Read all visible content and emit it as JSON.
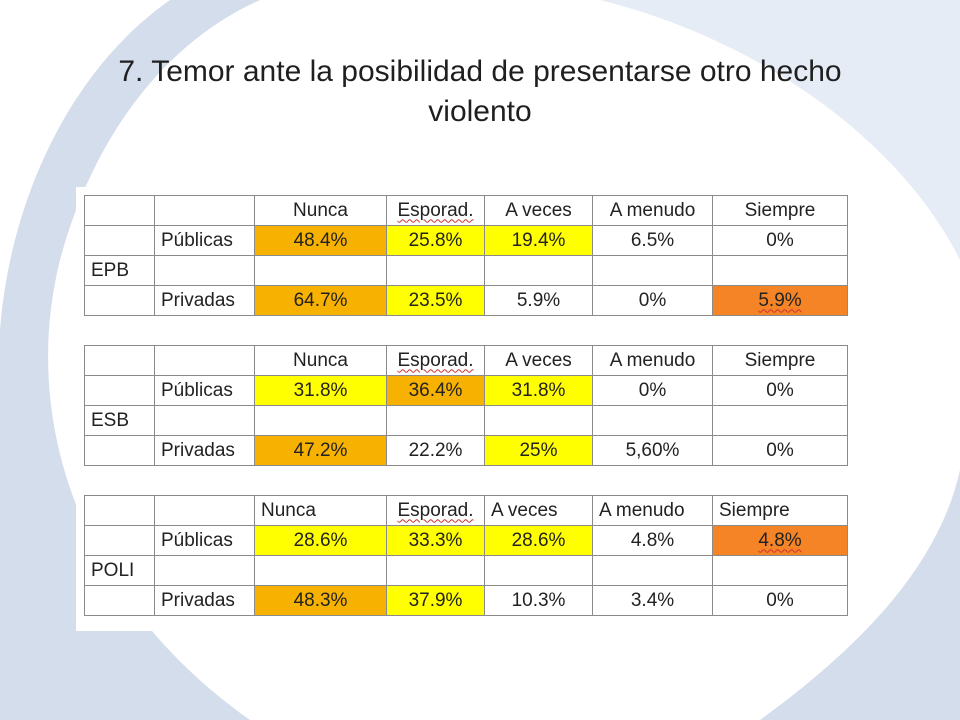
{
  "slide": {
    "title_line1": "7. Temor ante la posibilidad de presentarse otro hecho",
    "title_line2": "violento"
  },
  "colors": {
    "orange": "#f7b100",
    "yellow": "#ffff00",
    "red_orange": "#f58426",
    "background_swoosh": "#d3ddec"
  },
  "tables": [
    {
      "group": "EPB",
      "headers": [
        "Nunca",
        "Esporad.",
        "A veces",
        "A menudo",
        "Siempre"
      ],
      "row1": {
        "label": "Públicas",
        "values": [
          "48.4%",
          "25.8%",
          "19.4%",
          "6.5%",
          "0%"
        ]
      },
      "row2": {
        "label": "Privadas",
        "values": [
          "64.7%",
          "23.5%",
          "5.9%",
          "0%",
          "5.9%"
        ]
      }
    },
    {
      "group": "ESB",
      "headers": [
        "Nunca",
        "Esporad.",
        "A veces",
        "A menudo",
        "Siempre"
      ],
      "row1": {
        "label": "Públicas",
        "values": [
          "31.8%",
          "36.4%",
          "31.8%",
          "0%",
          "0%"
        ]
      },
      "row2": {
        "label": "Privadas",
        "values": [
          "47.2%",
          "22.2%",
          "25%",
          "5,60%",
          "0%"
        ]
      }
    },
    {
      "group": "POLI",
      "headers": [
        "Nunca",
        "Esporad.",
        "A veces",
        "A menudo",
        "Siempre"
      ],
      "row1": {
        "label": "Públicas",
        "values": [
          "28.6%",
          "33.3%",
          "28.6%",
          "4.8%",
          "4.8%"
        ]
      },
      "row2": {
        "label": "Privadas",
        "values": [
          "48.3%",
          "37.9%",
          "10.3%",
          "3.4%",
          "0%"
        ]
      }
    }
  ]
}
